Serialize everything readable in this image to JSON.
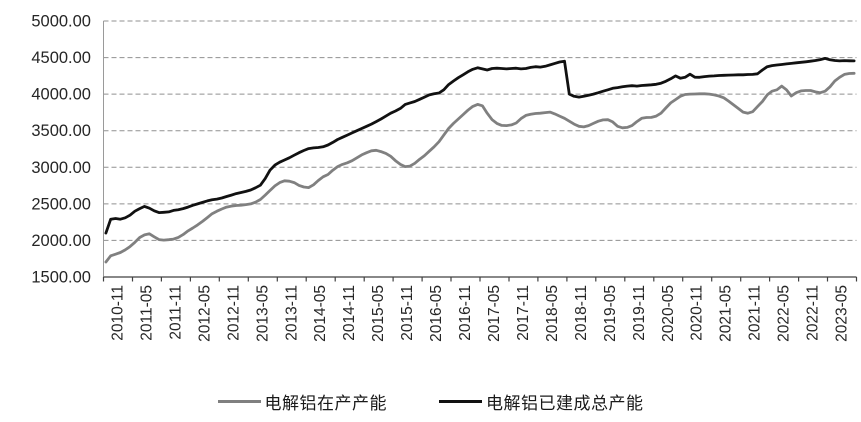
{
  "chart_data": {
    "type": "line",
    "title": "",
    "x_frequency": "monthly",
    "x_start": "2010-11",
    "x_end": "2023-10",
    "x_tick_labels": [
      "2010-11",
      "2011-05",
      "2011-11",
      "2012-05",
      "2012-11",
      "2013-05",
      "2013-11",
      "2014-05",
      "2014-11",
      "2015-05",
      "2015-11",
      "2016-05",
      "2016-11",
      "2017-05",
      "2017-11",
      "2018-05",
      "2018-11",
      "2019-05",
      "2019-11",
      "2020-05",
      "2020-11",
      "2021-05",
      "2021-11",
      "2022-05",
      "2022-11",
      "2023-05"
    ],
    "y_ticks": [
      5000,
      4500,
      4000,
      3500,
      3000,
      2500,
      2000,
      1500
    ],
    "y_tick_labels": [
      "5000.00",
      "4500.00",
      "4000.00",
      "3500.00",
      "3000.00",
      "2500.00",
      "2000.00",
      "1500.00"
    ],
    "ylim": [
      1500,
      5000
    ],
    "grid": "horizontal-dashed",
    "legend_position": "bottom",
    "axis_color": "#404040",
    "grid_color": "#909090",
    "series": [
      {
        "name": "电解铝在产产能",
        "color": "#808080",
        "values": [
          1705,
          1790,
          1812,
          1835,
          1870,
          1915,
          1975,
          2040,
          2075,
          2090,
          2050,
          2012,
          2005,
          2010,
          2018,
          2042,
          2080,
          2130,
          2170,
          2212,
          2260,
          2312,
          2365,
          2400,
          2430,
          2455,
          2470,
          2478,
          2482,
          2490,
          2500,
          2522,
          2560,
          2620,
          2682,
          2745,
          2790,
          2815,
          2810,
          2790,
          2752,
          2730,
          2722,
          2760,
          2820,
          2870,
          2902,
          2960,
          3010,
          3040,
          3062,
          3090,
          3130,
          3170,
          3200,
          3225,
          3232,
          3215,
          3190,
          3150,
          3090,
          3040,
          3010,
          3016,
          3055,
          3110,
          3160,
          3220,
          3280,
          3350,
          3440,
          3530,
          3600,
          3660,
          3720,
          3780,
          3832,
          3860,
          3840,
          3740,
          3650,
          3600,
          3572,
          3570,
          3580,
          3605,
          3665,
          3710,
          3725,
          3735,
          3740,
          3748,
          3755,
          3730,
          3700,
          3670,
          3630,
          3590,
          3560,
          3552,
          3570,
          3600,
          3630,
          3648,
          3650,
          3620,
          3560,
          3540,
          3545,
          3570,
          3625,
          3670,
          3680,
          3682,
          3700,
          3740,
          3810,
          3880,
          3925,
          3970,
          3995,
          4000,
          4002,
          4005,
          4005,
          4000,
          3990,
          3975,
          3950,
          3905,
          3855,
          3805,
          3755,
          3740,
          3760,
          3830,
          3900,
          3990,
          4040,
          4060,
          4110,
          4060,
          3975,
          4020,
          4045,
          4050,
          4050,
          4030,
          4020,
          4040,
          4100,
          4180,
          4230,
          4270,
          4282,
          4285
        ]
      },
      {
        "name": "电解铝已建成总产能",
        "color": "#111111",
        "values": [
          2100,
          2290,
          2300,
          2290,
          2310,
          2345,
          2400,
          2435,
          2465,
          2440,
          2405,
          2380,
          2385,
          2390,
          2410,
          2420,
          2435,
          2455,
          2480,
          2500,
          2520,
          2540,
          2555,
          2565,
          2580,
          2600,
          2620,
          2640,
          2655,
          2670,
          2690,
          2720,
          2755,
          2845,
          2960,
          3030,
          3070,
          3100,
          3130,
          3165,
          3200,
          3230,
          3255,
          3265,
          3270,
          3280,
          3305,
          3340,
          3380,
          3410,
          3440,
          3470,
          3500,
          3530,
          3560,
          3590,
          3625,
          3660,
          3700,
          3740,
          3770,
          3805,
          3860,
          3880,
          3900,
          3930,
          3960,
          3990,
          4005,
          4015,
          4060,
          4130,
          4180,
          4225,
          4265,
          4305,
          4340,
          4360,
          4345,
          4330,
          4350,
          4355,
          4350,
          4345,
          4350,
          4355,
          4345,
          4350,
          4365,
          4375,
          4370,
          4380,
          4400,
          4420,
          4440,
          4450,
          4000,
          3970,
          3960,
          3970,
          3985,
          4000,
          4020,
          4040,
          4060,
          4080,
          4090,
          4100,
          4110,
          4115,
          4110,
          4118,
          4122,
          4128,
          4135,
          4150,
          4175,
          4210,
          4250,
          4218,
          4230,
          4272,
          4232,
          4230,
          4240,
          4246,
          4250,
          4255,
          4258,
          4260,
          4262,
          4264,
          4265,
          4268,
          4270,
          4278,
          4330,
          4375,
          4390,
          4398,
          4405,
          4413,
          4420,
          4428,
          4435,
          4442,
          4450,
          4460,
          4472,
          4488,
          4470,
          4460,
          4455,
          4458,
          4456,
          4455
        ]
      }
    ]
  },
  "legend": {
    "operating_label": "电解铝在产产能",
    "total_label": "电解铝已建成总产能"
  }
}
